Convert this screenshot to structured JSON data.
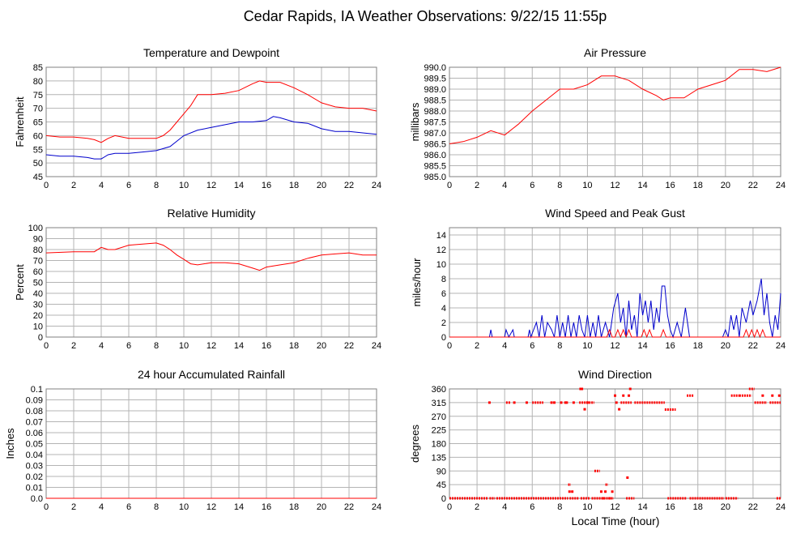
{
  "page": {
    "title": "Cedar Rapids, IA Weather Observations: 9/22/15 11:55p",
    "xlabel": "Local Time (hour)",
    "colors": {
      "red": "#ff0000",
      "blue": "#0000cc",
      "grid": "#b4b4b4",
      "frame": "#808080"
    }
  },
  "chart_data": [
    {
      "id": "temp",
      "type": "line",
      "title": "Temperature and Dewpoint",
      "ylabel": "Fahrenheit",
      "xlim": [
        0,
        24
      ],
      "ylim": [
        45,
        85
      ],
      "xticks": [
        0,
        2,
        4,
        6,
        8,
        10,
        12,
        14,
        16,
        18,
        20,
        22,
        24
      ],
      "yticks": [
        45,
        50,
        55,
        60,
        65,
        70,
        75,
        80,
        85
      ],
      "ytick_labels": [
        "45",
        "50",
        "55",
        "60",
        "65",
        "70",
        "75",
        "80",
        "85"
      ],
      "series": [
        {
          "color": "#ff0000",
          "x": [
            0,
            1,
            2,
            3,
            3.5,
            4,
            4.5,
            5,
            6,
            7,
            8,
            8.5,
            9,
            9.5,
            10,
            10.5,
            11,
            12,
            13,
            14,
            15,
            15.5,
            16,
            17,
            18,
            19,
            20,
            21,
            22,
            23,
            24
          ],
          "y": [
            60,
            59.5,
            59.5,
            59,
            58.5,
            57.5,
            59,
            60,
            59,
            59,
            59,
            60,
            62,
            65,
            68,
            71,
            75,
            75,
            75.5,
            76.5,
            79,
            80,
            79.5,
            79.5,
            77.5,
            75,
            72,
            70.5,
            70,
            70,
            69
          ]
        },
        {
          "color": "#0000cc",
          "x": [
            0,
            1,
            2,
            3,
            3.5,
            4,
            4.5,
            5,
            6,
            7,
            8,
            9,
            10,
            11,
            12,
            13,
            14,
            15,
            16,
            16.5,
            17,
            18,
            19,
            20,
            21,
            22,
            23,
            24
          ],
          "y": [
            53,
            52.5,
            52.5,
            52,
            51.5,
            51.5,
            53,
            53.5,
            53.5,
            54,
            54.5,
            56,
            60,
            62,
            63,
            64,
            65,
            65,
            65.5,
            67,
            66.5,
            65,
            64.5,
            62.5,
            61.5,
            61.5,
            61,
            60.5
          ]
        }
      ]
    },
    {
      "id": "pres",
      "type": "line",
      "title": "Air Pressure",
      "ylabel": "millibars",
      "xlim": [
        0,
        24
      ],
      "ylim": [
        985,
        990
      ],
      "xticks": [
        0,
        2,
        4,
        6,
        8,
        10,
        12,
        14,
        16,
        18,
        20,
        22,
        24
      ],
      "yticks": [
        985,
        985.5,
        986,
        986.5,
        987,
        987.5,
        988,
        988.5,
        989,
        989.5,
        990
      ],
      "ytick_labels": [
        "985.0",
        "985.5",
        "986.0",
        "986.5",
        "987.0",
        "987.5",
        "988.0",
        "988.5",
        "989.0",
        "989.5",
        "990.0"
      ],
      "series": [
        {
          "color": "#ff0000",
          "x": [
            0,
            1,
            2,
            3,
            4,
            5,
            6,
            7,
            8,
            9,
            10,
            11,
            12,
            13,
            14,
            15,
            15.5,
            16,
            17,
            18,
            19,
            20,
            21,
            22,
            23,
            24
          ],
          "y": [
            986.5,
            986.6,
            986.8,
            987.1,
            986.9,
            987.4,
            988.0,
            988.5,
            989.0,
            989.0,
            989.2,
            989.6,
            989.6,
            989.4,
            989.0,
            988.7,
            988.5,
            988.6,
            988.6,
            989.0,
            989.2,
            989.4,
            989.9,
            989.9,
            989.8,
            990.0
          ]
        }
      ]
    },
    {
      "id": "rh",
      "type": "line",
      "title": "Relative Humidity",
      "ylabel": "Percent",
      "xlim": [
        0,
        24
      ],
      "ylim": [
        0,
        100
      ],
      "xticks": [
        0,
        2,
        4,
        6,
        8,
        10,
        12,
        14,
        16,
        18,
        20,
        22,
        24
      ],
      "yticks": [
        0,
        10,
        20,
        30,
        40,
        50,
        60,
        70,
        80,
        90,
        100
      ],
      "ytick_labels": [
        "0",
        "10",
        "20",
        "30",
        "40",
        "50",
        "60",
        "70",
        "80",
        "90",
        "100"
      ],
      "series": [
        {
          "color": "#ff0000",
          "x": [
            0,
            2,
            3.5,
            4,
            4.5,
            5,
            6,
            7,
            8,
            8.5,
            9,
            9.5,
            10,
            10.5,
            11,
            12,
            13,
            14,
            15,
            15.5,
            16,
            17,
            18,
            19,
            20,
            21,
            22,
            23,
            24
          ],
          "y": [
            77,
            78,
            78,
            82,
            80,
            80,
            84,
            85,
            86,
            84,
            80,
            75,
            71,
            67,
            66,
            68,
            68,
            67,
            63,
            61,
            64,
            66,
            68,
            72,
            75,
            76,
            77,
            75,
            75
          ]
        }
      ]
    },
    {
      "id": "wind",
      "type": "line",
      "title": "Wind Speed and Peak Gust",
      "ylabel": "miles/hour",
      "xlim": [
        0,
        24
      ],
      "ylim": [
        0,
        15
      ],
      "xticks": [
        0,
        2,
        4,
        6,
        8,
        10,
        12,
        14,
        16,
        18,
        20,
        22,
        24
      ],
      "yticks": [
        0,
        2,
        4,
        6,
        8,
        10,
        12,
        14
      ],
      "ytick_labels": [
        "0",
        "2",
        "4",
        "6",
        "8",
        "10",
        "12",
        "14"
      ],
      "series": [
        {
          "color": "#0000cc",
          "x": [
            0,
            2.9,
            3.0,
            3.1,
            4.0,
            4.1,
            4.3,
            4.6,
            4.7,
            4.8,
            5.7,
            5.8,
            5.9,
            6.3,
            6.5,
            6.7,
            6.9,
            7.1,
            7.4,
            7.6,
            7.8,
            8.0,
            8.2,
            8.4,
            8.6,
            8.8,
            9.0,
            9.2,
            9.4,
            9.6,
            9.8,
            10.0,
            10.2,
            10.4,
            10.6,
            10.8,
            11.0,
            11.3,
            11.6,
            11.9,
            12.2,
            12.4,
            12.6,
            12.8,
            13.0,
            13.2,
            13.4,
            13.6,
            13.8,
            14.0,
            14.2,
            14.4,
            14.6,
            14.8,
            15.0,
            15.2,
            15.4,
            15.6,
            15.8,
            16.0,
            16.2,
            16.5,
            16.8,
            17.1,
            17.4,
            17.7,
            18.0,
            19.8,
            20.0,
            20.2,
            20.4,
            20.6,
            20.8,
            21.0,
            21.2,
            21.5,
            21.8,
            22.0,
            22.3,
            22.6,
            22.8,
            23.0,
            23.2,
            23.4,
            23.6,
            23.8,
            24.0
          ],
          "y": [
            0,
            0,
            1,
            0,
            0,
            1,
            0,
            1,
            0,
            0,
            0,
            1,
            0,
            2,
            0,
            3,
            0,
            2,
            1,
            0,
            3,
            0,
            2,
            0,
            3,
            0,
            2,
            0,
            3,
            1,
            0,
            3,
            0,
            2,
            0,
            3,
            0,
            2,
            0,
            4,
            6,
            2,
            4,
            0,
            5,
            1,
            3,
            0,
            6,
            3,
            5,
            2,
            5,
            1,
            4,
            2,
            7,
            7,
            3,
            1,
            0,
            2,
            0,
            4,
            0,
            0,
            0,
            0,
            1,
            0,
            3,
            1,
            3,
            0,
            4,
            2,
            5,
            3,
            5,
            8,
            3,
            6,
            2,
            0,
            3,
            1,
            6
          ]
        },
        {
          "color": "#ff0000",
          "x": [
            0,
            11.4,
            11.6,
            11.8,
            12.0,
            12.2,
            12.4,
            12.6,
            12.8,
            13.0,
            13.2,
            13.9,
            14.1,
            14.3,
            14.5,
            14.7,
            15.3,
            15.5,
            15.7,
            15.9,
            21.3,
            21.5,
            21.7,
            21.9,
            22.1,
            22.3,
            22.5,
            22.7,
            22.9,
            23.1,
            24.0
          ],
          "y": [
            0,
            0,
            1,
            0,
            0,
            1,
            0,
            1,
            0,
            1,
            0,
            0,
            1,
            0,
            1,
            0,
            0,
            1,
            0,
            0,
            0,
            1,
            0,
            1,
            0,
            1,
            0,
            1,
            0,
            0,
            0
          ]
        }
      ]
    },
    {
      "id": "rain",
      "type": "line",
      "title": "24 hour Accumulated Rainfall",
      "ylabel": "Inches",
      "xlim": [
        0,
        24
      ],
      "ylim": [
        0,
        0.1
      ],
      "xticks": [
        0,
        2,
        4,
        6,
        8,
        10,
        12,
        14,
        16,
        18,
        20,
        22,
        24
      ],
      "yticks": [
        0,
        0.01,
        0.02,
        0.03,
        0.04,
        0.05,
        0.06,
        0.07,
        0.08,
        0.09,
        0.1
      ],
      "ytick_labels": [
        "0.0",
        "0.01",
        "0.02",
        "0.03",
        "0.04",
        "0.05",
        "0.06",
        "0.07",
        "0.08",
        "0.09",
        "0.1"
      ],
      "series": [
        {
          "color": "#ff0000",
          "x": [
            0,
            24
          ],
          "y": [
            0,
            0
          ]
        }
      ]
    },
    {
      "id": "wdir",
      "type": "scatter",
      "title": "Wind Direction",
      "ylabel": "degrees",
      "xlim": [
        0,
        24
      ],
      "ylim": [
        0,
        360
      ],
      "xticks": [
        0,
        2,
        4,
        6,
        8,
        10,
        12,
        14,
        16,
        18,
        20,
        22,
        24
      ],
      "yticks": [
        0,
        45,
        90,
        135,
        180,
        225,
        270,
        315,
        360
      ],
      "ytick_labels": [
        "0",
        "45",
        "90",
        "135",
        "180",
        "225",
        "270",
        "315",
        "360"
      ],
      "series": [
        {
          "color": "#ff0000",
          "runs": [
            [
              0.0,
              2.8,
              0
            ],
            [
              2.9,
              3.3,
              0
            ],
            [
              3.4,
              8.6,
              0
            ],
            [
              8.7,
              9.4,
              0
            ],
            [
              9.5,
              10.2,
              0
            ],
            [
              10.3,
              11.9,
              0
            ],
            [
              12.8,
              13.4,
              0
            ],
            [
              15.8,
              17.2,
              0
            ],
            [
              17.4,
              19.9,
              0
            ],
            [
              20.0,
              20.9,
              0
            ],
            [
              23.7,
              24.0,
              0
            ],
            [
              13.4,
              15.6,
              315
            ],
            [
              15.6,
              16.4,
              292
            ],
            [
              9.4,
              10.5,
              315
            ],
            [
              10.5,
              10.9,
              90
            ],
            [
              11.3,
              11.5,
              45
            ],
            [
              8.6,
              8.8,
              45
            ],
            [
              17.2,
              17.7,
              338
            ],
            [
              21.0,
              21.9,
              338
            ],
            [
              21.7,
              22.1,
              360
            ],
            [
              22.1,
              23.0,
              315
            ],
            [
              23.2,
              24.0,
              315
            ],
            [
              20.4,
              21.0,
              338
            ],
            [
              6.0,
              6.8,
              315
            ],
            [
              4.1,
              4.4,
              315
            ],
            [
              12.4,
              13.2,
              315
            ]
          ],
          "x": [
            2.9,
            4.7,
            5.6,
            7.4,
            7.6,
            8.1,
            8.4,
            8.5,
            9.0,
            9.6,
            9.8,
            10.0,
            11.0,
            11.1,
            11.8,
            12.0,
            12.1,
            12.3,
            12.6,
            12.9,
            13.1,
            13.0,
            11.6,
            11.3,
            8.7,
            8.9,
            9.5,
            22.7,
            23.4,
            23.9
          ],
          "y": [
            315,
            315,
            315,
            315,
            315,
            315,
            315,
            315,
            315,
            360,
            293,
            315,
            22,
            0,
            22,
            338,
            315,
            293,
            338,
            68,
            360,
            338,
            0,
            22,
            22,
            22,
            360,
            338,
            338,
            338
          ]
        }
      ]
    }
  ]
}
